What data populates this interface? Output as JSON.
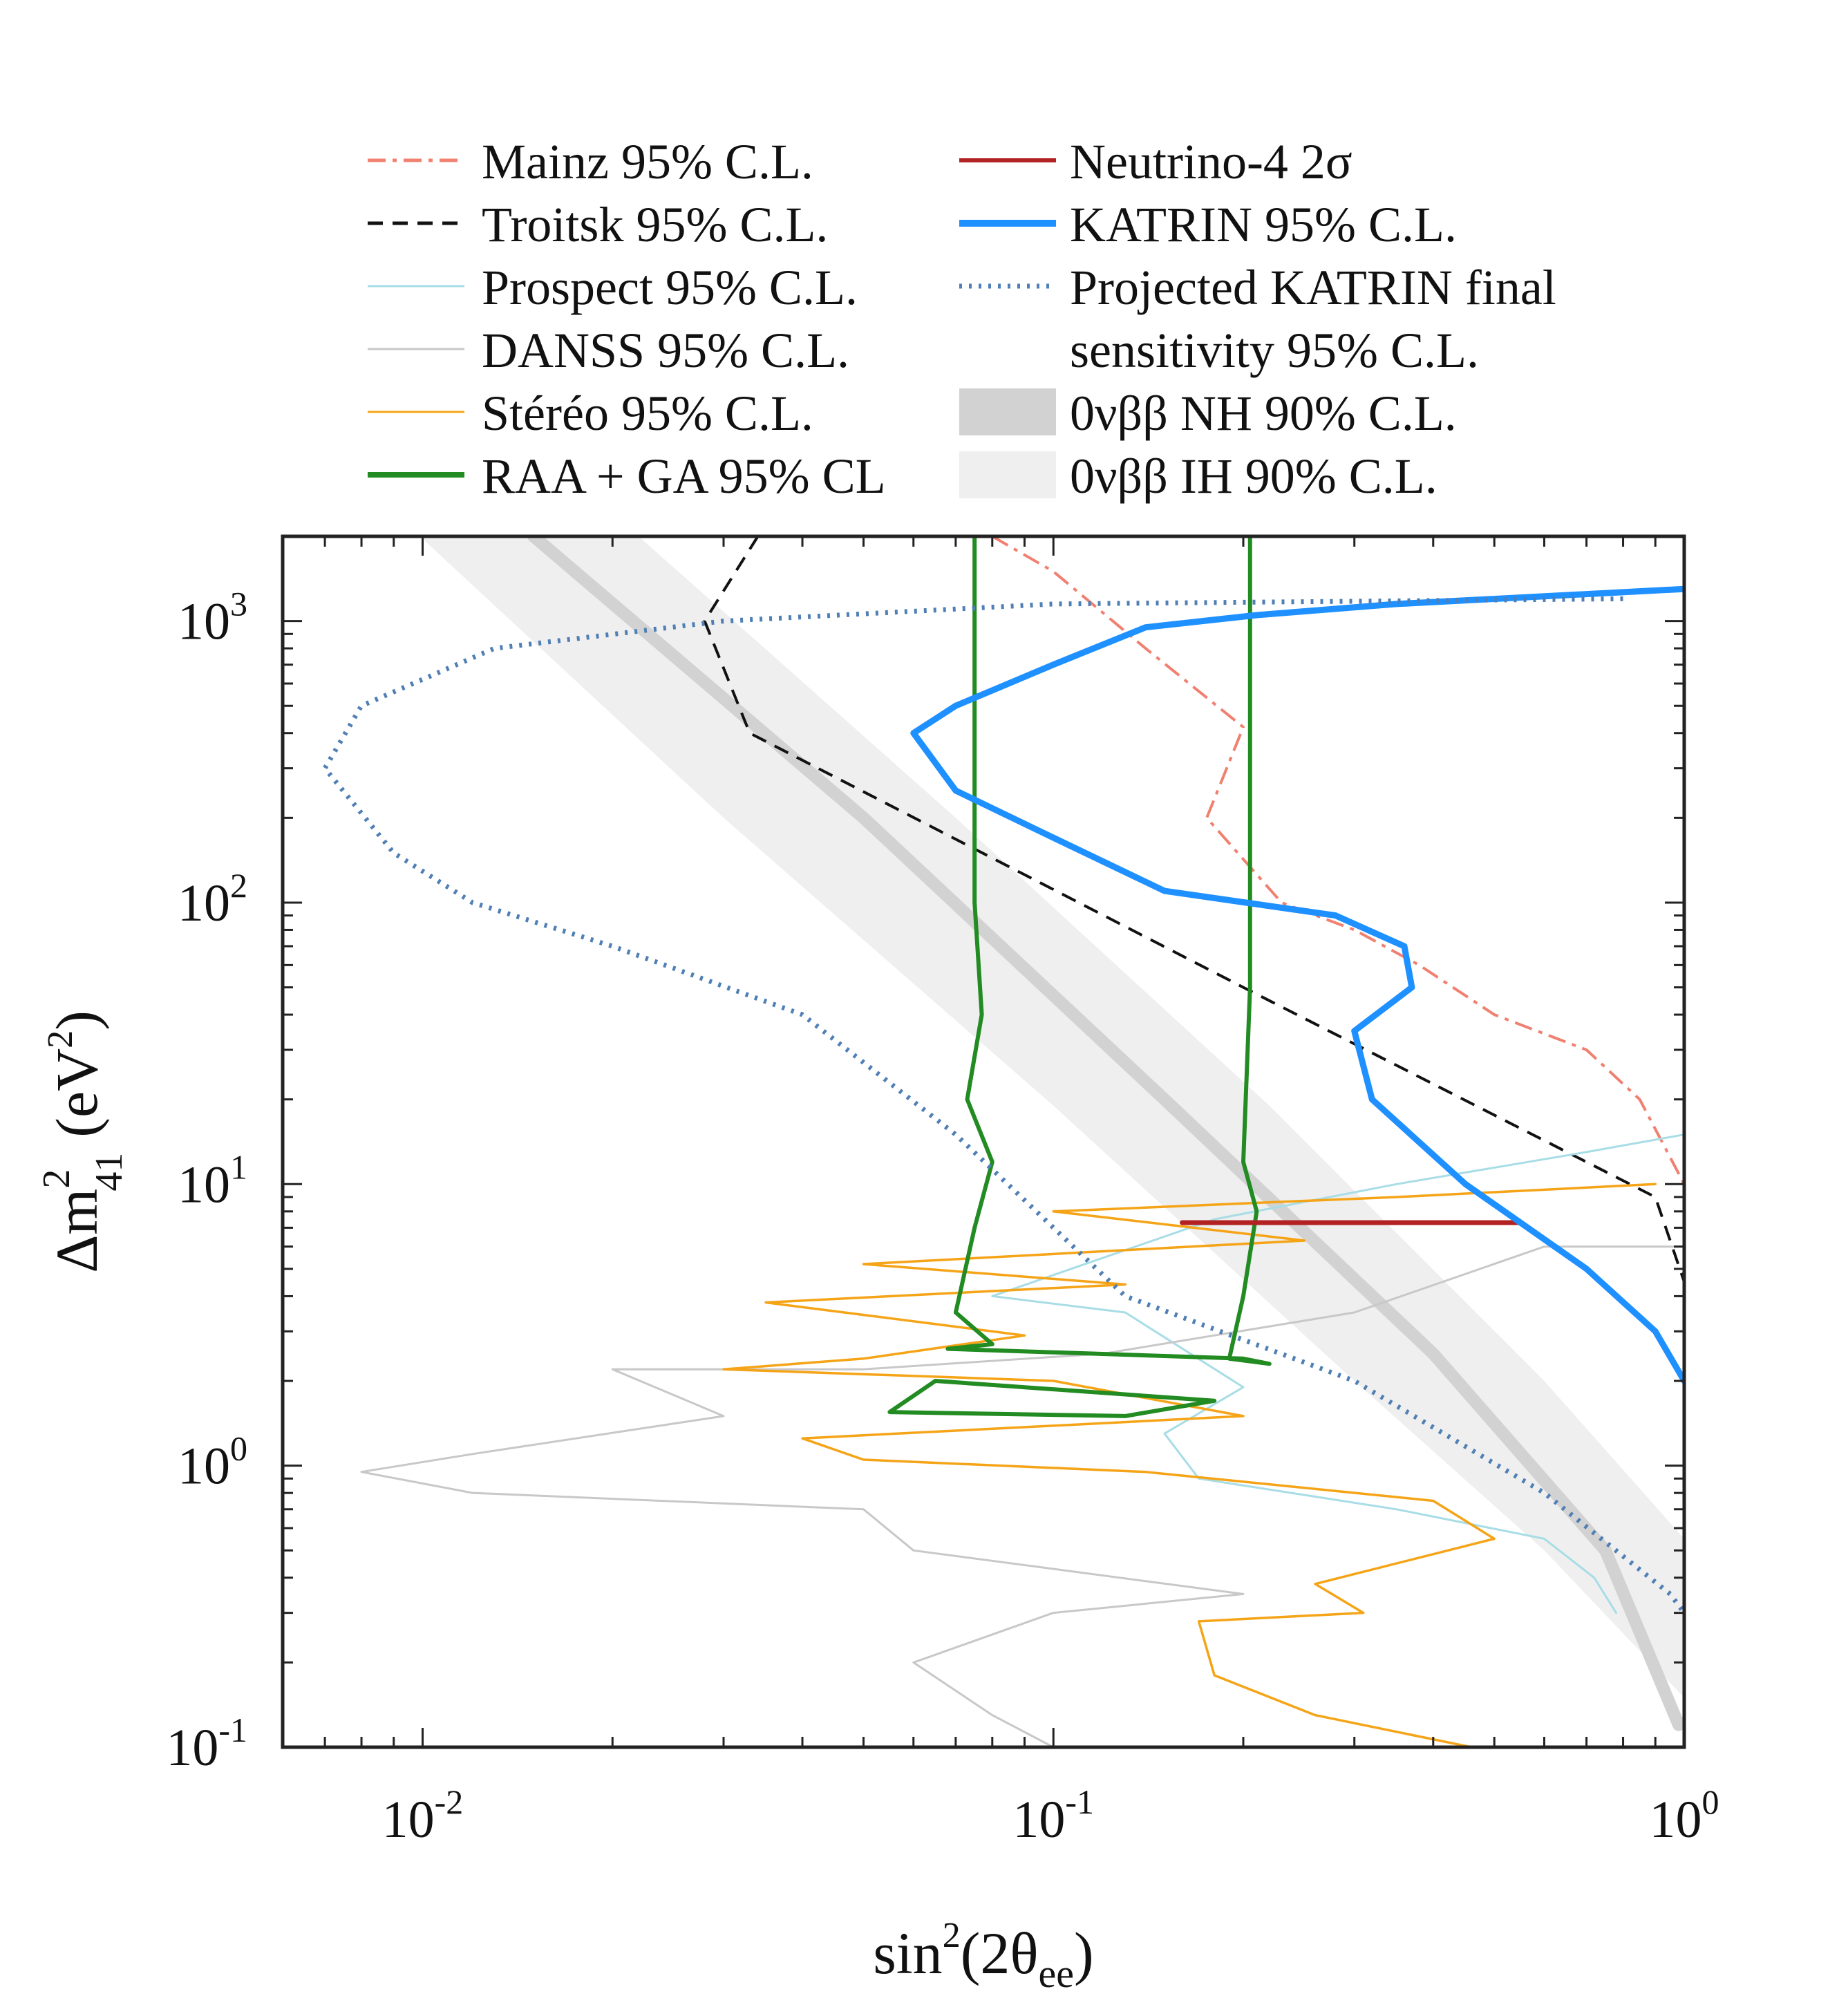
{
  "chart_data": {
    "type": "line",
    "xscale": "log",
    "yscale": "log",
    "xlim": [
      0.006,
      1.0
    ],
    "ylim": [
      0.1,
      2000
    ],
    "xlabel": "sin²(2θee)",
    "xlabel_main": "sin",
    "xlabel_sup": "2",
    "xlabel_mid": "(2θ",
    "xlabel_sub": "ee",
    "xlabel_end": ")",
    "ylabel": "Δm²41 (eV²)",
    "ylabel_main": "Δm",
    "ylabel_sup": "2",
    "ylabel_sub": "41",
    "ylabel_unit": "(eV",
    "ylabel_unit_sup": "2",
    "ylabel_end": ")",
    "xticks": [
      {
        "value": 0.01,
        "base": "10",
        "exp": "-2"
      },
      {
        "value": 0.1,
        "base": "10",
        "exp": "-1"
      },
      {
        "value": 1,
        "base": "10",
        "exp": "0"
      }
    ],
    "yticks": [
      {
        "value": 0.1,
        "base": "10",
        "exp": "-1"
      },
      {
        "value": 1,
        "base": "10",
        "exp": "0"
      },
      {
        "value": 10,
        "base": "10",
        "exp": "1"
      },
      {
        "value": 100,
        "base": "10",
        "exp": "2"
      },
      {
        "value": 1000,
        "base": "10",
        "exp": "3"
      }
    ],
    "legend_position": "top, two columns above plot",
    "bands": [
      {
        "name": "0νββ IH 90% C.L.",
        "color": "#efefef",
        "lower": [
          [
            0.0099,
            2000
          ],
          [
            0.03,
            200
          ],
          [
            0.1,
            19
          ],
          [
            0.3,
            2
          ],
          [
            0.6,
            0.5
          ],
          [
            1.0,
            0.15
          ]
        ],
        "upper": [
          [
            0.022,
            2000
          ],
          [
            0.07,
            200
          ],
          [
            0.22,
            19
          ],
          [
            0.6,
            2
          ],
          [
            1.0,
            0.55
          ]
        ]
      },
      {
        "name": "0νββ NH 90% C.L.",
        "color": "#d2d2d2",
        "line": [
          [
            0.015,
            2000
          ],
          [
            0.05,
            200
          ],
          [
            0.15,
            20
          ],
          [
            0.4,
            2.5
          ],
          [
            0.75,
            0.5
          ],
          [
            0.98,
            0.12
          ]
        ]
      }
    ],
    "series": [
      {
        "name": "Mainz 95% C.L.",
        "color": "#f08070",
        "dash": "26,10,6,10",
        "width": 4,
        "points": [
          [
            0.08,
            2000
          ],
          [
            0.1,
            1500
          ],
          [
            0.14,
            800
          ],
          [
            0.2,
            420
          ],
          [
            0.175,
            200
          ],
          [
            0.23,
            100
          ],
          [
            0.3,
            80
          ],
          [
            0.38,
            60
          ],
          [
            0.5,
            40
          ],
          [
            0.7,
            30
          ],
          [
            0.85,
            20
          ],
          [
            1.0,
            10
          ]
        ]
      },
      {
        "name": "Troitsk 95% C.L.",
        "color": "#111111",
        "dash": "22,14",
        "width": 4,
        "points": [
          [
            0.034,
            2000
          ],
          [
            0.028,
            1000
          ],
          [
            0.033,
            400
          ],
          [
            0.2,
            50
          ],
          [
            0.9,
            9
          ],
          [
            1.0,
            4.5
          ]
        ]
      },
      {
        "name": "Prospect 95% C.L.",
        "color": "#a8dde6",
        "dash": "",
        "width": 3,
        "points": [
          [
            1.0,
            15
          ],
          [
            0.7,
            13
          ],
          [
            0.35,
            10
          ],
          [
            0.18,
            7.5
          ],
          [
            0.08,
            4
          ],
          [
            0.13,
            3.5
          ],
          [
            0.2,
            1.9
          ],
          [
            0.15,
            1.3
          ],
          [
            0.17,
            0.9
          ],
          [
            0.35,
            0.7
          ],
          [
            0.6,
            0.55
          ],
          [
            0.72,
            0.4
          ],
          [
            0.78,
            0.3
          ]
        ]
      },
      {
        "name": "DANSS 95% C.L.",
        "color": "#c8c8c8",
        "dash": "",
        "width": 3,
        "points": [
          [
            1.0,
            6
          ],
          [
            0.6,
            6
          ],
          [
            0.3,
            3.5
          ],
          [
            0.12,
            2.5
          ],
          [
            0.05,
            2.2
          ],
          [
            0.02,
            2.2
          ],
          [
            0.03,
            1.5
          ],
          [
            0.012,
            1.1
          ],
          [
            0.008,
            0.95
          ],
          [
            0.012,
            0.8
          ],
          [
            0.05,
            0.7
          ],
          [
            0.06,
            0.5
          ],
          [
            0.2,
            0.35
          ],
          [
            0.1,
            0.3
          ],
          [
            0.06,
            0.2
          ],
          [
            0.08,
            0.13
          ],
          [
            0.1,
            0.1
          ]
        ]
      },
      {
        "name": "Stéréo 95% C.L.",
        "color": "#f5a417",
        "dash": "",
        "width": 3.5,
        "points": [
          [
            0.9,
            10
          ],
          [
            0.35,
            9
          ],
          [
            0.1,
            8
          ],
          [
            0.25,
            6.3
          ],
          [
            0.05,
            5.2
          ],
          [
            0.13,
            4.4
          ],
          [
            0.035,
            3.8
          ],
          [
            0.09,
            2.9
          ],
          [
            0.05,
            2.4
          ],
          [
            0.03,
            2.2
          ],
          [
            0.1,
            2.0
          ],
          [
            0.2,
            1.5
          ],
          [
            0.04,
            1.25
          ],
          [
            0.05,
            1.05
          ],
          [
            0.14,
            0.95
          ],
          [
            0.4,
            0.75
          ],
          [
            0.5,
            0.55
          ],
          [
            0.26,
            0.38
          ],
          [
            0.31,
            0.3
          ],
          [
            0.17,
            0.28
          ],
          [
            0.18,
            0.18
          ],
          [
            0.26,
            0.13
          ],
          [
            0.46,
            0.1
          ]
        ]
      },
      {
        "name": "RAA + GA 95% CL",
        "color": "#228b22",
        "dash": "",
        "width": 6,
        "points": [
          [
            0.075,
            2000
          ],
          [
            0.075,
            100
          ],
          [
            0.077,
            40
          ],
          [
            0.073,
            20
          ],
          [
            0.08,
            12
          ],
          [
            0.075,
            7
          ],
          [
            0.07,
            3.5
          ],
          [
            0.08,
            2.7
          ],
          [
            0.068,
            2.6
          ],
          [
            0.2,
            2.4
          ],
          [
            0.22,
            2.3
          ],
          [
            0.19,
            2.4
          ],
          [
            0.2,
            4
          ],
          [
            0.21,
            8
          ],
          [
            0.2,
            12
          ],
          [
            0.205,
            50
          ],
          [
            0.205,
            2000
          ]
        ]
      },
      {
        "name": "RAA + GA 95% CL",
        "color": "#228b22",
        "dash": "",
        "width": 6,
        "points": [
          [
            0.065,
            2.0
          ],
          [
            0.18,
            1.7
          ],
          [
            0.13,
            1.5
          ],
          [
            0.055,
            1.55
          ],
          [
            0.065,
            2.0
          ]
        ]
      },
      {
        "name": "Neutrino-4 2σ",
        "color": "#b22222",
        "dash": "",
        "width": 7,
        "points": [
          [
            0.16,
            7.3
          ],
          [
            0.55,
            7.3
          ]
        ]
      },
      {
        "name": "KATRIN 95% C.L.",
        "color": "#1e90ff",
        "dash": "",
        "width": 9,
        "points": [
          [
            1.0,
            1300
          ],
          [
            0.35,
            1150
          ],
          [
            0.21,
            1050
          ],
          [
            0.14,
            950
          ],
          [
            0.1,
            700
          ],
          [
            0.07,
            500
          ],
          [
            0.06,
            400
          ],
          [
            0.07,
            250
          ],
          [
            0.1,
            170
          ],
          [
            0.15,
            110
          ],
          [
            0.28,
            90
          ],
          [
            0.36,
            70
          ],
          [
            0.37,
            50
          ],
          [
            0.3,
            35
          ],
          [
            0.32,
            20
          ],
          [
            0.45,
            10
          ],
          [
            0.7,
            5
          ],
          [
            0.9,
            3
          ],
          [
            1.0,
            2
          ]
        ]
      },
      {
        "name": "Projected KATRIN final sensitivity 95% C.L.",
        "color": "#4f7fb4",
        "dash": "4,10",
        "width": 7,
        "points": [
          [
            0.8,
            1200
          ],
          [
            0.1,
            1150
          ],
          [
            0.03,
            1000
          ],
          [
            0.013,
            800
          ],
          [
            0.008,
            500
          ],
          [
            0.007,
            300
          ],
          [
            0.009,
            150
          ],
          [
            0.012,
            100
          ],
          [
            0.02,
            70
          ],
          [
            0.04,
            40
          ],
          [
            0.07,
            15
          ],
          [
            0.13,
            4
          ],
          [
            0.3,
            2
          ],
          [
            0.6,
            0.8
          ],
          [
            0.95,
            0.35
          ],
          [
            1.0,
            0.3
          ]
        ]
      }
    ],
    "legend": {
      "left": [
        {
          "label": "Mainz 95% C.L.",
          "color": "#f08070",
          "dash": "26,10,6,10",
          "width": 5,
          "swatch": "line"
        },
        {
          "label": "Troitsk 95% C.L.",
          "color": "#111111",
          "dash": "22,14",
          "width": 5,
          "swatch": "line"
        },
        {
          "label": "Prospect 95% C.L.",
          "color": "#a8dde6",
          "dash": "",
          "width": 3,
          "swatch": "line"
        },
        {
          "label": "DANSS 95% C.L.",
          "color": "#c8c8c8",
          "dash": "",
          "width": 3,
          "swatch": "line"
        },
        {
          "label": "Stéréo 95% C.L.",
          "color": "#f5a417",
          "dash": "",
          "width": 3,
          "swatch": "line"
        },
        {
          "label": "RAA + GA 95% CL",
          "color": "#228b22",
          "dash": "",
          "width": 8,
          "swatch": "line"
        }
      ],
      "right": [
        {
          "label": "Neutrino-4 2σ",
          "color": "#b22222",
          "dash": "",
          "width": 6,
          "swatch": "line"
        },
        {
          "label": "KATRIN 95% C.L.",
          "color": "#1e90ff",
          "dash": "",
          "width": 10,
          "swatch": "line"
        },
        {
          "label": "Projected KATRIN final",
          "color": "#4f7fb4",
          "dash": "4,10",
          "width": 7,
          "swatch": "line"
        },
        {
          "label": "sensitivity 95% C.L.",
          "color": "",
          "dash": "",
          "width": 0,
          "swatch": "none"
        },
        {
          "label": "0νββ NH 90% C.L.",
          "color": "#d2d2d2",
          "dash": "",
          "width": 40,
          "swatch": "band"
        },
        {
          "label": "0νββ IH 90% C.L.",
          "color": "#efefef",
          "dash": "",
          "width": 40,
          "swatch": "band"
        }
      ]
    }
  }
}
